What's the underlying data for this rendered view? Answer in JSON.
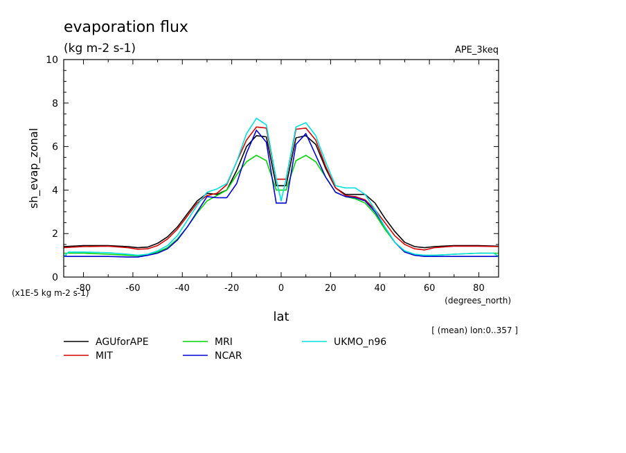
{
  "chart_data": {
    "type": "line",
    "title": "evaporation flux",
    "units": "(kg m-2 s-1)",
    "run_label": "APE_3keq",
    "ylabel": "sh_evap_zonal",
    "xlabel": "lat",
    "x_units": "(degrees_north)",
    "y_scale_note": "(x1E-5 kg m-2 s-1)",
    "mean_note": "[ (mean) lon:0..357 ]",
    "xlim": [
      -88,
      88
    ],
    "ylim": [
      0,
      10
    ],
    "x_ticks": [
      -80,
      -60,
      -40,
      -20,
      0,
      20,
      40,
      60,
      80
    ],
    "y_ticks": [
      0,
      2,
      4,
      6,
      8,
      10
    ],
    "legend_position": "bottom",
    "series": [
      {
        "name": "AGUforAPE",
        "color": "#000000",
        "x": [
          -88,
          -80,
          -70,
          -62,
          -58,
          -54,
          -50,
          -46,
          -42,
          -38,
          -34,
          -30,
          -26,
          -22,
          -18,
          -14,
          -10,
          -6,
          -2,
          0,
          2,
          6,
          10,
          14,
          18,
          22,
          26,
          30,
          34,
          38,
          42,
          46,
          50,
          54,
          58,
          62,
          70,
          80,
          88
        ],
        "y": [
          1.4,
          1.45,
          1.45,
          1.4,
          1.35,
          1.38,
          1.55,
          1.85,
          2.3,
          2.9,
          3.5,
          3.85,
          3.8,
          4.0,
          4.9,
          6.0,
          6.5,
          6.45,
          4.2,
          4.2,
          4.2,
          6.4,
          6.5,
          6.1,
          5.0,
          4.1,
          3.8,
          3.8,
          3.8,
          3.4,
          2.7,
          2.1,
          1.6,
          1.4,
          1.35,
          1.4,
          1.45,
          1.45,
          1.42
        ]
      },
      {
        "name": "MIT",
        "color": "#d40000",
        "x": [
          -88,
          -80,
          -70,
          -62,
          -58,
          -54,
          -50,
          -46,
          -42,
          -38,
          -34,
          -30,
          -26,
          -22,
          -18,
          -14,
          -10,
          -6,
          -2,
          0,
          2,
          6,
          10,
          14,
          18,
          22,
          26,
          30,
          34,
          38,
          42,
          46,
          50,
          54,
          58,
          62,
          70,
          80,
          88
        ],
        "y": [
          1.35,
          1.4,
          1.42,
          1.35,
          1.28,
          1.3,
          1.45,
          1.75,
          2.2,
          2.8,
          3.4,
          3.75,
          3.85,
          4.25,
          5.3,
          6.3,
          6.9,
          6.85,
          4.5,
          4.5,
          4.5,
          6.8,
          6.85,
          6.3,
          5.1,
          4.1,
          3.75,
          3.7,
          3.55,
          3.1,
          2.5,
          1.9,
          1.5,
          1.3,
          1.25,
          1.35,
          1.42,
          1.42,
          1.4
        ]
      },
      {
        "name": "MRI",
        "color": "#00d400",
        "x": [
          -88,
          -80,
          -70,
          -62,
          -58,
          -54,
          -50,
          -46,
          -42,
          -38,
          -34,
          -30,
          -26,
          -22,
          -18,
          -14,
          -10,
          -6,
          -2,
          0,
          2,
          6,
          10,
          14,
          18,
          22,
          26,
          30,
          34,
          38,
          42,
          46,
          50,
          54,
          58,
          62,
          70,
          80,
          88
        ],
        "y": [
          1.1,
          1.1,
          1.05,
          1.0,
          0.98,
          1.0,
          1.15,
          1.35,
          1.75,
          2.3,
          2.95,
          3.5,
          3.75,
          4.0,
          4.7,
          5.3,
          5.6,
          5.35,
          4.0,
          4.0,
          4.0,
          5.35,
          5.6,
          5.3,
          4.6,
          3.9,
          3.7,
          3.6,
          3.4,
          2.9,
          2.2,
          1.6,
          1.2,
          1.05,
          1.0,
          1.0,
          1.05,
          1.1,
          1.1
        ]
      },
      {
        "name": "NCAR",
        "color": "#0000d4",
        "x": [
          -88,
          -80,
          -70,
          -62,
          -58,
          -54,
          -50,
          -46,
          -42,
          -38,
          -34,
          -30,
          -26,
          -22,
          -18,
          -14,
          -10,
          -6,
          -2,
          0,
          2,
          6,
          10,
          14,
          18,
          22,
          26,
          30,
          34,
          38,
          42,
          46,
          50,
          54,
          58,
          62,
          70,
          80,
          88
        ],
        "y": [
          0.95,
          0.95,
          0.95,
          0.92,
          0.92,
          1.0,
          1.1,
          1.3,
          1.7,
          2.3,
          3.0,
          3.7,
          3.65,
          3.65,
          4.3,
          5.7,
          6.75,
          6.2,
          3.4,
          3.4,
          3.4,
          6.1,
          6.6,
          5.6,
          4.6,
          3.9,
          3.7,
          3.65,
          3.5,
          3.0,
          2.3,
          1.6,
          1.15,
          1.0,
          0.95,
          0.95,
          0.95,
          0.95,
          0.95
        ]
      },
      {
        "name": "UKMO_n96",
        "color": "#00e0e0",
        "x": [
          -88,
          -86,
          -80,
          -70,
          -62,
          -58,
          -54,
          -50,
          -46,
          -42,
          -38,
          -34,
          -30,
          -26,
          -22,
          -18,
          -14,
          -10,
          -6,
          -2,
          0,
          2,
          6,
          10,
          14,
          18,
          22,
          26,
          30,
          34,
          38,
          42,
          46,
          50,
          54,
          58,
          62,
          70,
          80,
          86,
          88
        ],
        "y": [
          0.95,
          1.15,
          1.15,
          1.12,
          1.05,
          1.0,
          1.05,
          1.2,
          1.45,
          1.9,
          2.6,
          3.3,
          3.9,
          4.05,
          4.3,
          5.3,
          6.6,
          7.3,
          7.0,
          4.5,
          3.5,
          4.5,
          6.9,
          7.1,
          6.5,
          5.3,
          4.2,
          4.1,
          4.1,
          3.8,
          3.1,
          2.3,
          1.6,
          1.2,
          1.05,
          1.0,
          1.0,
          1.05,
          1.1,
          1.1,
          0.95
        ]
      }
    ]
  }
}
